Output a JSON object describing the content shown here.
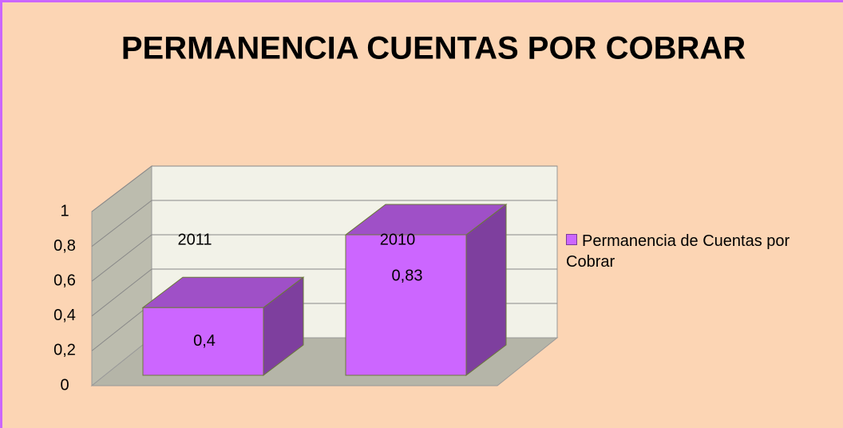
{
  "chart_data": {
    "type": "bar3d",
    "title": "PERMANENCIA CUENTAS POR COBRAR",
    "categories": [
      "2011",
      "2010"
    ],
    "series": [
      {
        "name": "Permanencia de Cuentas por Cobrar",
        "color": "#cc66ff",
        "values": [
          0.4,
          0.83
        ],
        "value_labels": [
          "0,4",
          "0,83"
        ]
      }
    ],
    "ylim": [
      0,
      1
    ],
    "yticks": [
      0,
      {
        "value": 0.2,
        "label": "0,2"
      },
      {
        "value": 0.4,
        "label": "0,4"
      },
      {
        "value": 0.6,
        "label": "0,6"
      },
      {
        "value": 0.8,
        "label": "0,8"
      },
      1
    ],
    "grid": true,
    "legend": "right"
  }
}
